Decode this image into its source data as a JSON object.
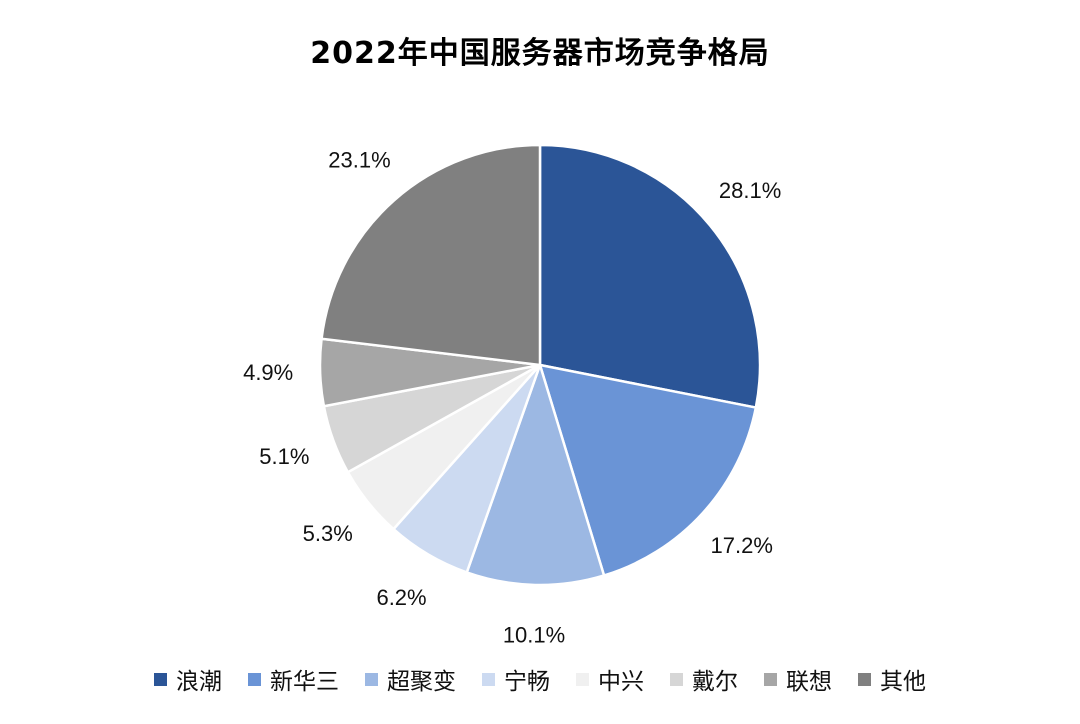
{
  "chart_data": {
    "type": "pie",
    "title": "2022年中国服务器市场竞争格局",
    "categories": [
      "浪潮",
      "新华三",
      "超聚变",
      "宁畅",
      "中兴",
      "戴尔",
      "联想",
      "其他"
    ],
    "values": [
      28.1,
      17.2,
      10.1,
      6.2,
      5.3,
      5.1,
      4.9,
      23.1
    ],
    "value_labels": [
      "28.1%",
      "17.2%",
      "10.1%",
      "6.2%",
      "5.3%",
      "5.1%",
      "4.9%",
      "23.1%"
    ],
    "colors": [
      "#2B5597",
      "#6A94D6",
      "#9CB8E3",
      "#CCDAF1",
      "#F0F0F0",
      "#D6D6D6",
      "#A6A6A6",
      "#808080"
    ],
    "start": "12 o'clock, clockwise",
    "legend_position": "bottom"
  }
}
